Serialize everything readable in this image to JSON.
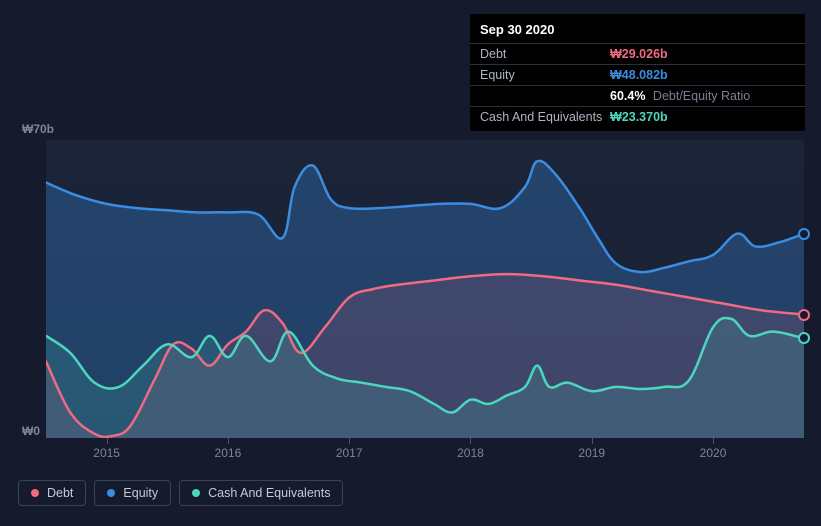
{
  "colors": {
    "background": "#151b2c",
    "chart_bg": "#1b2337",
    "debt": "#f06a82",
    "equity": "#3a8de0",
    "cash": "#4cd6bd",
    "debt_fill": "rgba(240,106,130,0.14)",
    "equity_fill": "rgba(58,141,224,0.30)",
    "cash_fill": "rgba(76,214,189,0.16)",
    "axis_text": "#7a8599",
    "tooltip_bg": "#000000",
    "tooltip_label": "#aeb5c4",
    "tooltip_sub": "#7a8194",
    "legend_border": "#3a4256",
    "legend_text": "#c3cadb"
  },
  "chart": {
    "type": "area",
    "x_start_year": 2014.5,
    "x_end_year": 2020.75,
    "ylim": [
      0,
      70
    ],
    "y_axis_labels": [
      {
        "v": 70,
        "label": "₩70b"
      },
      {
        "v": 0,
        "label": "₩0"
      }
    ],
    "x_ticks": [
      2015,
      2016,
      2017,
      2018,
      2019,
      2020
    ],
    "line_width": 2.5,
    "series": {
      "equity": {
        "label": "Equity",
        "points": [
          [
            2014.5,
            60
          ],
          [
            2014.75,
            57
          ],
          [
            2015.0,
            55
          ],
          [
            2015.25,
            54
          ],
          [
            2015.5,
            53.5
          ],
          [
            2015.75,
            53
          ],
          [
            2016.0,
            53
          ],
          [
            2016.25,
            52.5
          ],
          [
            2016.45,
            47
          ],
          [
            2016.55,
            59
          ],
          [
            2016.7,
            64
          ],
          [
            2016.85,
            56
          ],
          [
            2017.0,
            54
          ],
          [
            2017.25,
            54
          ],
          [
            2017.5,
            54.5
          ],
          [
            2017.75,
            55
          ],
          [
            2018.0,
            55
          ],
          [
            2018.25,
            54
          ],
          [
            2018.45,
            59
          ],
          [
            2018.55,
            65
          ],
          [
            2018.7,
            62
          ],
          [
            2018.9,
            54
          ],
          [
            2019.05,
            47
          ],
          [
            2019.2,
            41
          ],
          [
            2019.4,
            39
          ],
          [
            2019.6,
            40
          ],
          [
            2019.8,
            41.5
          ],
          [
            2020.0,
            43
          ],
          [
            2020.2,
            48
          ],
          [
            2020.35,
            45
          ],
          [
            2020.55,
            46
          ],
          [
            2020.75,
            48
          ]
        ]
      },
      "debt": {
        "label": "Debt",
        "points": [
          [
            2014.5,
            18
          ],
          [
            2014.7,
            6
          ],
          [
            2014.9,
            1
          ],
          [
            2015.05,
            0.5
          ],
          [
            2015.2,
            3
          ],
          [
            2015.4,
            14
          ],
          [
            2015.55,
            22
          ],
          [
            2015.7,
            21
          ],
          [
            2015.85,
            17
          ],
          [
            2016.0,
            22
          ],
          [
            2016.15,
            25
          ],
          [
            2016.3,
            30
          ],
          [
            2016.45,
            27
          ],
          [
            2016.6,
            20
          ],
          [
            2016.8,
            26
          ],
          [
            2017.0,
            33
          ],
          [
            2017.2,
            35
          ],
          [
            2017.4,
            36
          ],
          [
            2017.7,
            37
          ],
          [
            2018.0,
            38
          ],
          [
            2018.3,
            38.5
          ],
          [
            2018.6,
            38
          ],
          [
            2018.9,
            37
          ],
          [
            2019.2,
            36
          ],
          [
            2019.5,
            34.5
          ],
          [
            2019.8,
            33
          ],
          [
            2020.1,
            31.5
          ],
          [
            2020.4,
            30
          ],
          [
            2020.75,
            29
          ]
        ]
      },
      "cash": {
        "label": "Cash And Equivalents",
        "points": [
          [
            2014.5,
            24
          ],
          [
            2014.7,
            20
          ],
          [
            2014.9,
            13
          ],
          [
            2015.1,
            12
          ],
          [
            2015.3,
            17
          ],
          [
            2015.5,
            22
          ],
          [
            2015.7,
            19
          ],
          [
            2015.85,
            24
          ],
          [
            2016.0,
            19
          ],
          [
            2016.15,
            24
          ],
          [
            2016.35,
            18
          ],
          [
            2016.5,
            25
          ],
          [
            2016.7,
            17
          ],
          [
            2016.9,
            14
          ],
          [
            2017.1,
            13
          ],
          [
            2017.3,
            12
          ],
          [
            2017.5,
            11
          ],
          [
            2017.7,
            8
          ],
          [
            2017.85,
            6
          ],
          [
            2018.0,
            9
          ],
          [
            2018.15,
            8
          ],
          [
            2018.3,
            10
          ],
          [
            2018.45,
            12
          ],
          [
            2018.55,
            17
          ],
          [
            2018.65,
            12
          ],
          [
            2018.8,
            13
          ],
          [
            2019.0,
            11
          ],
          [
            2019.2,
            12
          ],
          [
            2019.4,
            11.5
          ],
          [
            2019.6,
            12
          ],
          [
            2019.8,
            13.5
          ],
          [
            2020.0,
            26
          ],
          [
            2020.15,
            28
          ],
          [
            2020.3,
            24
          ],
          [
            2020.5,
            25
          ],
          [
            2020.75,
            23.4
          ]
        ]
      }
    },
    "end_markers": {
      "equity": 48,
      "debt": 29,
      "cash": 23.4
    }
  },
  "tooltip": {
    "title": "Sep 30 2020",
    "rows": [
      {
        "label": "Debt",
        "value": "₩29.026b",
        "color_key": "debt"
      },
      {
        "label": "Equity",
        "value": "₩48.082b",
        "color_key": "equity"
      },
      {
        "label": "",
        "value": "60.4%",
        "sub": "Debt/Equity Ratio",
        "color_key": "none"
      },
      {
        "label": "Cash And Equivalents",
        "value": "₩23.370b",
        "color_key": "cash"
      }
    ]
  },
  "legend": [
    {
      "label": "Debt",
      "color_key": "debt"
    },
    {
      "label": "Equity",
      "color_key": "equity"
    },
    {
      "label": "Cash And Equivalents",
      "color_key": "cash"
    }
  ]
}
